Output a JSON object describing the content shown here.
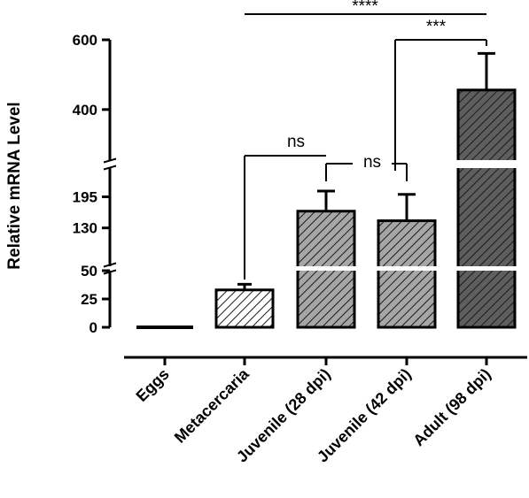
{
  "chart_data": {
    "type": "bar",
    "ylabel": "Relative mRNA Level",
    "xlabel": "",
    "title": "",
    "categories": [
      "Eggs",
      "Metacercaria",
      "Juvenile (28 dpi)",
      "Juvenile (42 dpi)",
      "Adult (98 dpi)"
    ],
    "values": [
      1,
      33,
      165,
      145,
      456
    ],
    "errors": [
      0,
      5,
      42,
      55,
      105
    ],
    "y_axis_segments": [
      {
        "range": [
          0,
          50
        ],
        "ticks": [
          "0",
          "25",
          "50"
        ]
      },
      {
        "range": [
          50,
          255
        ],
        "ticks": [
          "130",
          "195"
        ]
      },
      {
        "range": [
          255,
          600
        ],
        "ticks": [
          "400",
          "600"
        ]
      }
    ],
    "bar_colors": [
      "#d0d0d0",
      "#ffffff",
      "#a6a6a6",
      "#a6a6a6",
      "#5e5e5e"
    ],
    "hatch_color": "#1a1a1a",
    "significance": [
      {
        "from": 1,
        "to": 2,
        "label": "ns"
      },
      {
        "from": 2,
        "to": 3,
        "label": "ns"
      },
      {
        "from": 3,
        "to": 4,
        "label": "***"
      },
      {
        "from": 1,
        "to": 4,
        "label": "****"
      }
    ],
    "grid": false,
    "legend": "none"
  }
}
